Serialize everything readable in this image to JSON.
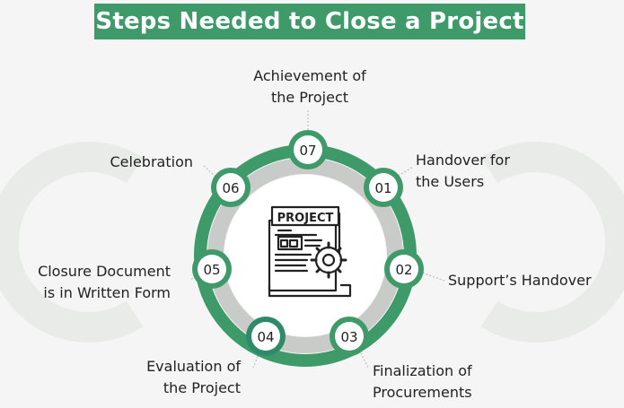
{
  "title": "Steps Needed to Close a Project",
  "center": {
    "document_label": "PROJECT",
    "icon": "project-document-gear-icon"
  },
  "colors": {
    "accent": "#3f9a6a",
    "accent_dark": "#2e8b6a",
    "ring_inner": "#c9cbc9",
    "background": "#f4f5f4"
  },
  "steps": [
    {
      "number": "01",
      "label_line1": "Handover for",
      "label_line2": "the Users"
    },
    {
      "number": "02",
      "label_line1": "Support’s Handover",
      "label_line2": ""
    },
    {
      "number": "03",
      "label_line1": "Finalization of",
      "label_line2": "Procurements"
    },
    {
      "number": "04",
      "label_line1": "Evaluation of",
      "label_line2": "the Project"
    },
    {
      "number": "05",
      "label_line1": "Closure Document",
      "label_line2": "is in Written Form"
    },
    {
      "number": "06",
      "label_line1": "Celebration",
      "label_line2": ""
    },
    {
      "number": "07",
      "label_line1": "Achievement of",
      "label_line2": "the Project"
    }
  ]
}
